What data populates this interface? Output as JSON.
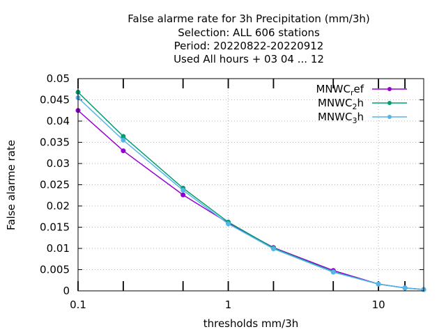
{
  "chart_data": {
    "type": "line",
    "title_lines": [
      "False alarme rate  for 3h Precipitation (mm/3h)",
      "Selection: ALL    606 stations",
      "Period: 20220822-20220912",
      "Used  All hours  + 03 04 ... 12"
    ],
    "xlabel": "thresholds mm/3h",
    "ylabel": "False alarme rate",
    "x_scale": "log",
    "xlim": [
      0.1,
      20
    ],
    "ylim": [
      0,
      0.05
    ],
    "grid": true,
    "legend_position": "top-right",
    "x_ticks": [
      {
        "value": 0.1,
        "label": "0.1"
      },
      {
        "value": 1,
        "label": "1"
      },
      {
        "value": 10,
        "label": "10"
      }
    ],
    "x_minor_ticks": [
      0.2,
      0.5,
      2,
      5,
      15
    ],
    "y_ticks": [
      {
        "value": 0,
        "label": "0"
      },
      {
        "value": 0.005,
        "label": "0.005"
      },
      {
        "value": 0.01,
        "label": "0.01"
      },
      {
        "value": 0.015,
        "label": "0.015"
      },
      {
        "value": 0.02,
        "label": "0.02"
      },
      {
        "value": 0.025,
        "label": "0.025"
      },
      {
        "value": 0.03,
        "label": "0.03"
      },
      {
        "value": 0.035,
        "label": "0.035"
      },
      {
        "value": 0.04,
        "label": "0.04"
      },
      {
        "value": 0.045,
        "label": "0.045"
      },
      {
        "value": 0.05,
        "label": "0.05"
      }
    ],
    "x": [
      0.1,
      0.2,
      0.5,
      1,
      2,
      5,
      10,
      15,
      20
    ],
    "series": [
      {
        "name": "MNWC_ref",
        "legend_main": "MNWC",
        "legend_sub": "r",
        "legend_tail": "ef",
        "color": "#9400d3",
        "values": [
          0.0425,
          0.033,
          0.0226,
          0.016,
          0.0102,
          0.0048,
          0.0016,
          0.0007,
          0.0003
        ]
      },
      {
        "name": "MNWC_2h",
        "legend_main": "MNWC",
        "legend_sub": "2",
        "legend_tail": "h",
        "color": "#009e73",
        "values": [
          0.0468,
          0.0364,
          0.0242,
          0.0162,
          0.0101,
          0.0045,
          0.0016,
          0.0007,
          0.0003
        ]
      },
      {
        "name": "MNWC_3h",
        "legend_main": "MNWC",
        "legend_sub": "3",
        "legend_tail": "h",
        "color": "#56b4e9",
        "values": [
          0.0455,
          0.0355,
          0.0237,
          0.0158,
          0.0099,
          0.0044,
          0.0016,
          0.0007,
          0.0003
        ]
      }
    ]
  }
}
